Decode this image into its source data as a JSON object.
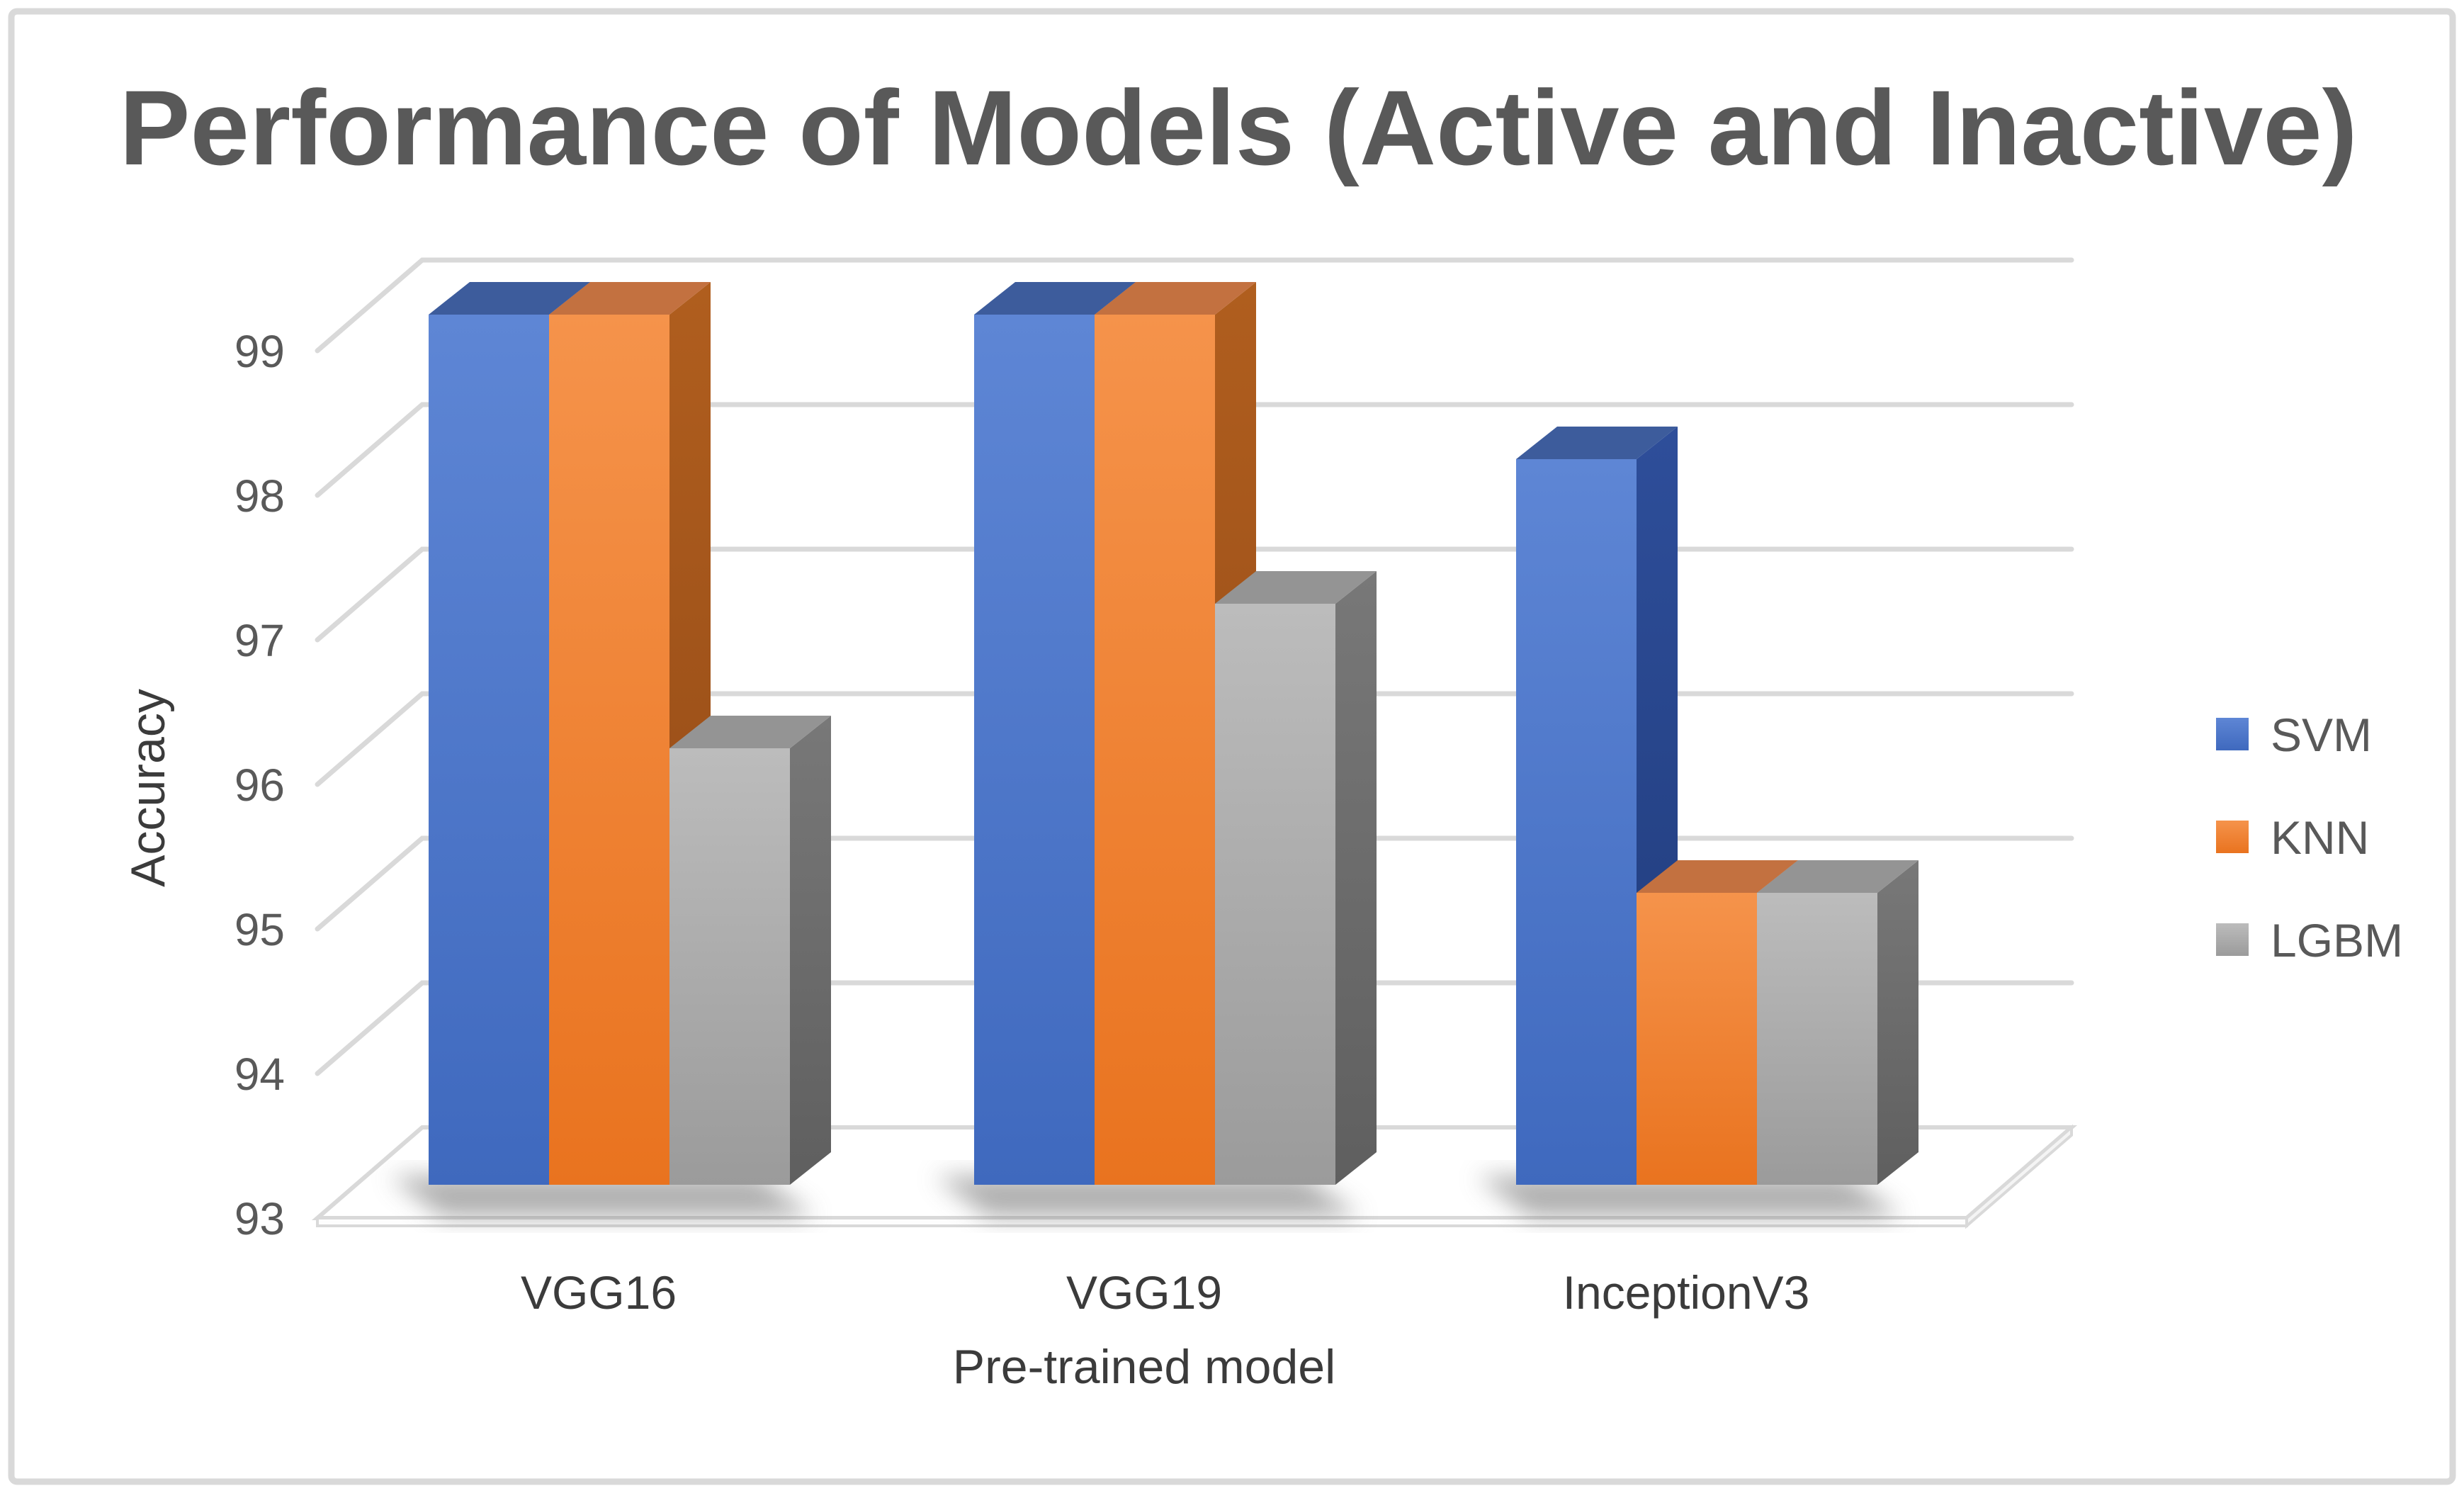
{
  "figure": {
    "background": "#FFFFFF",
    "border_color": "#D9D9D9"
  },
  "chart_data": {
    "type": "bar",
    "projection": "3d-clustered-column",
    "title": "Performance of Models (Active and Inactive)",
    "xlabel": "Pre-trained model",
    "ylabel": "Accuracy",
    "categories": [
      "VGG16",
      "VGG19",
      "InceptionV3"
    ],
    "series": [
      {
        "name": "SVM",
        "color": "#4472C4",
        "values": [
          99,
          99,
          98
        ],
        "front_gradient": [
          "#5E86D5",
          "#3F69BE"
        ],
        "side_gradient": [
          "#2E4E9A",
          "#1F3A78"
        ],
        "top_color": "#3D5C9C"
      },
      {
        "name": "KNN",
        "color": "#ED7D31",
        "values": [
          99,
          99,
          95
        ],
        "front_gradient": [
          "#F5934B",
          "#E9731F"
        ],
        "side_gradient": [
          "#B05E1E",
          "#8E4716"
        ],
        "top_color": "#C37140"
      },
      {
        "name": "LGBM",
        "color": "#A5A5A5",
        "values": [
          96,
          97,
          95
        ],
        "front_gradient": [
          "#BCBCBC",
          "#9B9B9B"
        ],
        "side_gradient": [
          "#787878",
          "#5F5F5F"
        ],
        "top_color": "#949494"
      }
    ],
    "ylim": [
      93,
      99
    ],
    "yticks": [
      93,
      94,
      95,
      96,
      97,
      98,
      99
    ],
    "ytick_step": 1,
    "grid": true,
    "gridline_color": "#D9D9D9",
    "legend_position": "right",
    "title_color": "#595959",
    "tick_color": "#595959",
    "label_color": "#3B3B3B",
    "legend_text_color": "#595959",
    "shadow_color": "#5E5E5E"
  }
}
